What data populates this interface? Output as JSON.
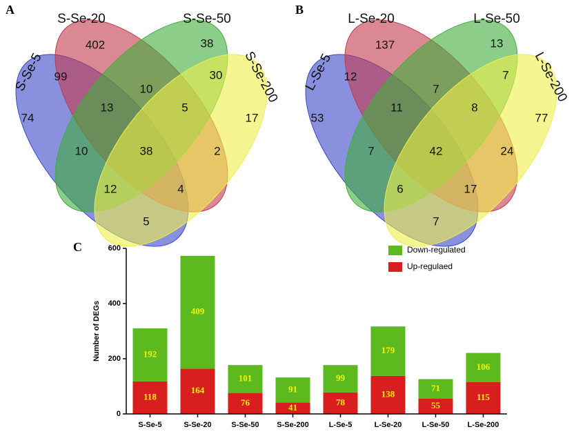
{
  "chart_data": [
    {
      "type": "venn",
      "panel": "A",
      "sets": [
        "S-Se-5",
        "S-Se-20",
        "S-Se-50",
        "S-Se-200"
      ],
      "colors": [
        "#3a46c8",
        "#c23a4c",
        "#3fae3a",
        "#eeee4a"
      ],
      "regions": [
        402,
        38,
        99,
        10,
        30,
        74,
        13,
        5,
        17,
        10,
        38,
        2,
        12,
        4,
        5
      ]
    },
    {
      "type": "venn",
      "panel": "B",
      "sets": [
        "L-Se-5",
        "L-Se-20",
        "L-Se-50",
        "L-Se-200"
      ],
      "colors": [
        "#3a46c8",
        "#c23a4c",
        "#3fae3a",
        "#eeee4a"
      ],
      "regions": [
        137,
        13,
        12,
        7,
        7,
        53,
        11,
        8,
        77,
        7,
        42,
        24,
        6,
        17,
        7
      ]
    },
    {
      "type": "stacked_bar",
      "panel": "C",
      "ylabel": "Number of DEGs",
      "categories": [
        "S-Se-5",
        "S-Se-20",
        "S-Se-50",
        "S-Se-200",
        "L-Se-5",
        "L-Se-20",
        "L-Se-50",
        "L-Se-200"
      ],
      "series": [
        {
          "name": "Up-regulaed",
          "color": "#d81e1e",
          "values": [
            118,
            164,
            76,
            41,
            78,
            138,
            55,
            115
          ]
        },
        {
          "name": "Down-regulated",
          "color": "#5cba1e",
          "values": [
            192,
            409,
            101,
            91,
            99,
            179,
            71,
            106
          ]
        }
      ],
      "ylim": [
        0,
        600
      ],
      "yticks": [
        0,
        200,
        400,
        600
      ]
    }
  ]
}
